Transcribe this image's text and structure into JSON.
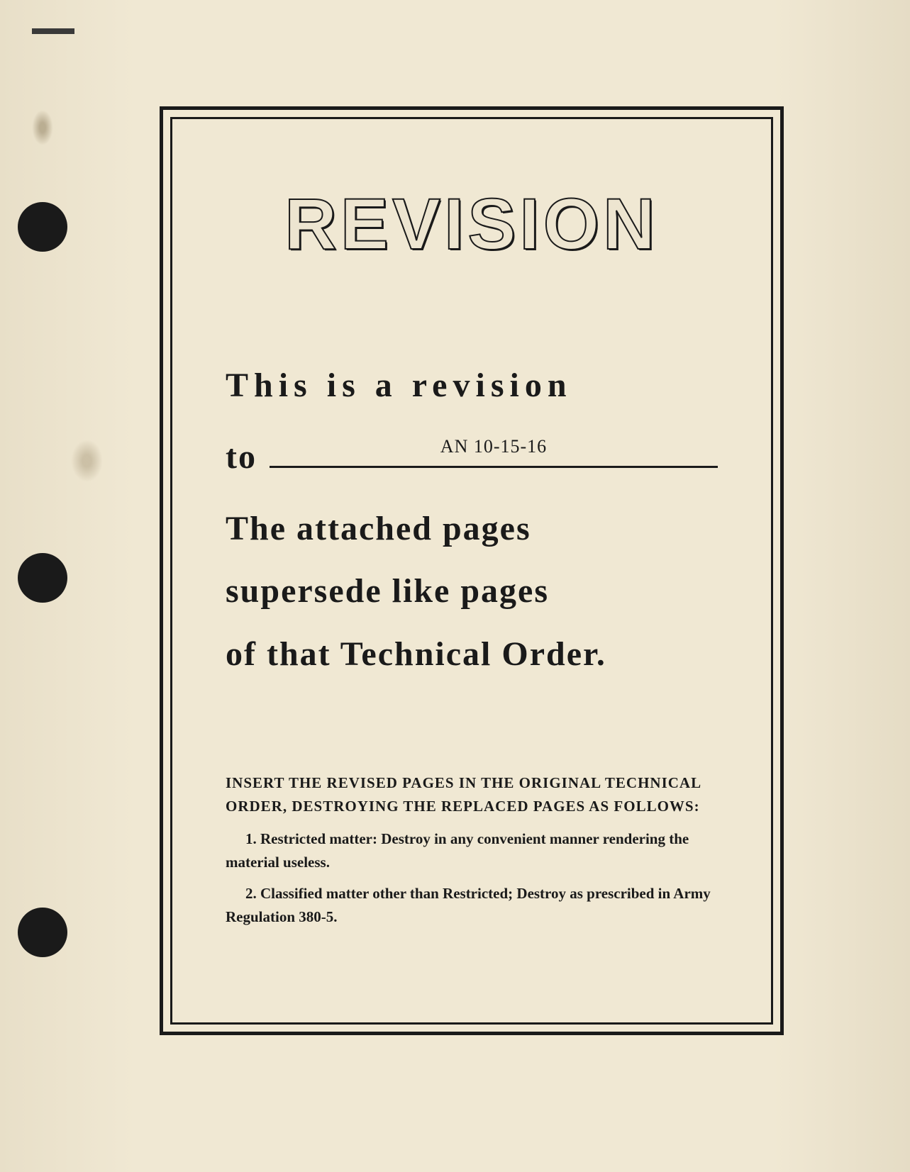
{
  "page": {
    "background_color": "#ede5d0",
    "frame_color": "#1a1a1a",
    "text_color": "#1a1a1a"
  },
  "title": "REVISION",
  "main_text": {
    "line1": "This is a revision",
    "to_label": "to",
    "document_number": "AN 10-15-16",
    "line3": "The attached pages",
    "line4": "supersede like pages",
    "line5": "of that Technical Order."
  },
  "instructions": {
    "header": "INSERT THE REVISED PAGES IN THE ORIGINAL TECHNICAL ORDER, DESTROYING THE REPLACED PAGES AS FOLLOWS:",
    "items": [
      "1.   Restricted matter: Destroy in any convenient manner rendering the material useless.",
      "2.   Classified matter other than Restricted; Destroy as prescribed in Army Regulation 380-5."
    ]
  },
  "styling": {
    "title_fontsize": 102,
    "main_text_fontsize": 48,
    "doc_number_fontsize": 26,
    "instruction_fontsize": 21,
    "outer_border_width": 5,
    "inner_border_width": 3
  }
}
